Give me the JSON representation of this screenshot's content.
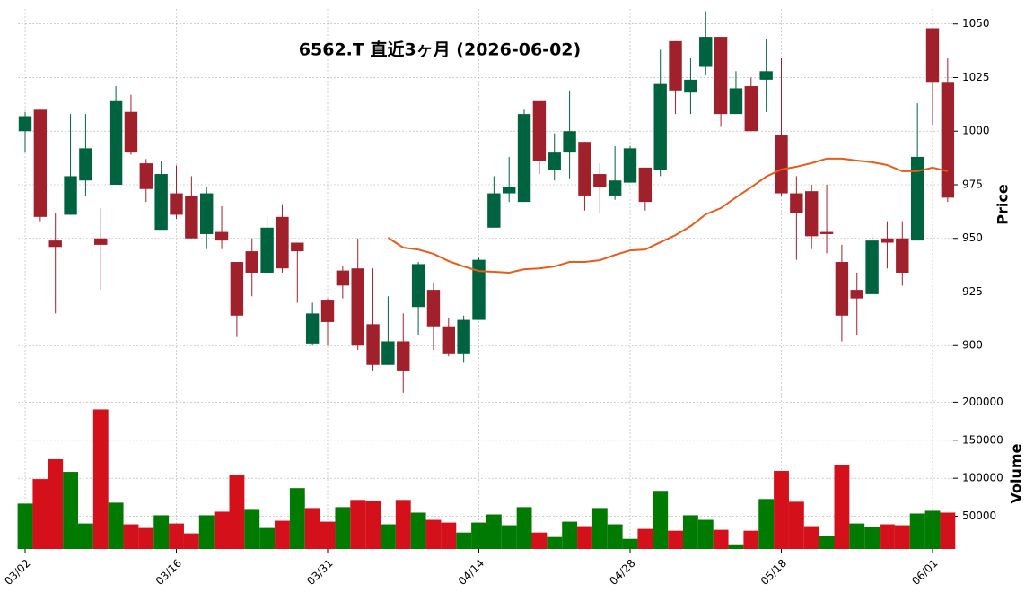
{
  "chart_data": {
    "type": "candlestick",
    "title": "6562.T  直近3ヶ月  (2026-06-02)",
    "ylabel": "Price",
    "volume_ylabel": "Volume",
    "categories": [
      "03/02",
      null,
      null,
      null,
      null,
      null,
      null,
      null,
      null,
      null,
      "03/16",
      null,
      null,
      null,
      null,
      null,
      null,
      null,
      null,
      null,
      "03/31",
      null,
      null,
      null,
      null,
      null,
      null,
      null,
      null,
      null,
      "04/14",
      null,
      null,
      null,
      null,
      null,
      null,
      null,
      null,
      null,
      "04/28",
      null,
      null,
      null,
      null,
      null,
      null,
      null,
      null,
      null,
      "05/18",
      null,
      null,
      null,
      null,
      null,
      null,
      null,
      null,
      null,
      "06/01",
      null
    ],
    "open": [
      1000,
      1010,
      949,
      961,
      977,
      950,
      975,
      1009,
      985,
      954,
      971,
      970,
      952,
      953,
      939,
      944,
      934,
      960,
      948,
      901,
      921,
      935,
      936,
      910,
      891,
      902,
      918,
      926,
      909,
      896,
      912,
      955,
      971,
      967,
      1014,
      982,
      990,
      995,
      980,
      970,
      976,
      983,
      982,
      1042,
      1018,
      1030,
      1044,
      1008,
      1021,
      1024,
      998,
      971,
      972,
      953,
      939,
      926,
      924,
      950,
      950,
      949,
      1048,
      1023
    ],
    "high": [
      1009,
      1010,
      962,
      1008,
      1008,
      964,
      1021,
      1017,
      987,
      986,
      984,
      979,
      974,
      965,
      939,
      950,
      960,
      966,
      948,
      920,
      922,
      937,
      950,
      936,
      923,
      915,
      939,
      929,
      913,
      914,
      941,
      979,
      988,
      1010,
      1014,
      999,
      1019,
      995,
      985,
      993,
      993,
      983,
      1038,
      1042,
      1034,
      1056,
      1044,
      1028,
      1025,
      1043,
      1034,
      979,
      975,
      975,
      947,
      934,
      952,
      958,
      958,
      1013,
      1048,
      1034
    ],
    "low": [
      990,
      958,
      915,
      961,
      970,
      926,
      975,
      989,
      967,
      954,
      959,
      950,
      945,
      945,
      904,
      923,
      934,
      934,
      920,
      900,
      900,
      922,
      898,
      888,
      891,
      878,
      905,
      898,
      895,
      892,
      912,
      955,
      967,
      967,
      980,
      977,
      978,
      963,
      962,
      968,
      976,
      963,
      979,
      1008,
      1008,
      1026,
      1002,
      1008,
      1000,
      1009,
      970,
      940,
      945,
      943,
      902,
      905,
      924,
      936,
      928,
      949,
      1003,
      967
    ],
    "close": [
      1007,
      960,
      946,
      979,
      992,
      947,
      1014,
      990,
      973,
      980,
      961,
      950,
      971,
      949,
      914,
      934,
      955,
      936,
      944,
      915,
      911,
      928,
      900,
      891,
      902,
      888,
      938,
      909,
      896,
      912,
      940,
      971,
      974,
      1008,
      986,
      990,
      1000,
      970,
      974,
      977,
      992,
      967,
      1022,
      1019,
      1024,
      1044,
      1008,
      1020,
      1000,
      1028,
      971,
      962,
      951,
      952,
      914,
      922,
      949,
      948,
      934,
      988,
      1023,
      969
    ],
    "volume": [
      66700,
      98900,
      125000,
      108400,
      40500,
      190500,
      67900,
      39400,
      34600,
      51300,
      40500,
      27500,
      51300,
      56000,
      104800,
      59600,
      34600,
      44100,
      87000,
      60800,
      42900,
      62000,
      71500,
      70300,
      39400,
      71500,
      54800,
      45300,
      41700,
      28600,
      41700,
      52400,
      38200,
      62000,
      28600,
      22700,
      42900,
      37000,
      60800,
      39400,
      20300,
      33400,
      83400,
      31000,
      51300,
      45300,
      32200,
      12000,
      31000,
      72700,
      109600,
      69100,
      37000,
      23800,
      117900,
      40500,
      35800,
      39400,
      38200,
      53600,
      57200,
      54800
    ],
    "ma": [
      null,
      null,
      null,
      null,
      null,
      null,
      null,
      null,
      null,
      null,
      null,
      null,
      null,
      null,
      null,
      null,
      null,
      null,
      null,
      null,
      null,
      null,
      null,
      null,
      950.3,
      945.7,
      944.8,
      942.8,
      939.4,
      936.9,
      934.8,
      934.4,
      934.0,
      935.6,
      936.0,
      936.9,
      939.0,
      939.0,
      939.8,
      942.3,
      944.4,
      944.8,
      948.2,
      951.5,
      955.7,
      961.2,
      964.1,
      969.1,
      973.8,
      978.8,
      982.1,
      983.4,
      985.1,
      987.2,
      987.2,
      986.3,
      985.5,
      984.2,
      981.3,
      981.3,
      983.0,
      981.3
    ],
    "ylim": [
      875,
      1057
    ],
    "yticks": [
      900,
      925,
      950,
      975,
      1000,
      1025,
      1050
    ],
    "volume_ylim": [
      7000,
      204000
    ],
    "volume_yticks": [
      50000,
      100000,
      150000,
      200000
    ],
    "grid": true,
    "up_color": "#006340",
    "down_color": "#a0212b",
    "volume_up_color": "#007a00",
    "volume_down_color": "#d4101a",
    "ma_color": "#e65c1a"
  }
}
